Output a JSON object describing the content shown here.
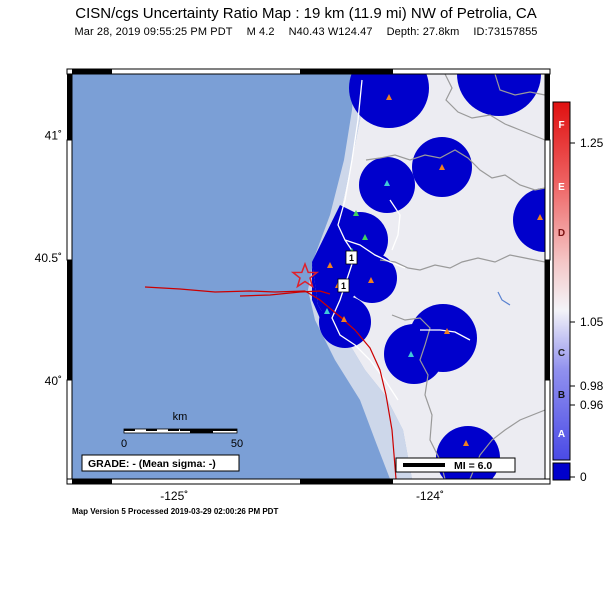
{
  "title": "CISN/cgs Uncertainty Ratio Map : 19 km (11.9 mi) NW of Petrolia, CA",
  "subtitle": {
    "datetime": "Mar 28, 2019 09:55:25 PM PDT",
    "magnitude": "M 4.2",
    "location": "N40.43 W124.47",
    "depth": "Depth: 27.8km",
    "event_id": "ID:73157855"
  },
  "map": {
    "lon_range": [
      -125.4,
      -123.55
    ],
    "lat_range": [
      39.6,
      41.25
    ],
    "lat_ticks": [
      {
        "value": 41.0,
        "label": "41˚"
      },
      {
        "value": 40.5,
        "label": "40.5˚"
      },
      {
        "value": 40.0,
        "label": "40˚"
      }
    ],
    "lon_ticks": [
      {
        "value": -125.0,
        "label": "-125˚"
      },
      {
        "value": -124.0,
        "label": "-124˚"
      }
    ],
    "epicenter": {
      "lon": -124.47,
      "lat": 40.43
    },
    "colors": {
      "ocean": "#7b9fd6",
      "land": "#ececf2",
      "coast_shelf": "#ccd6e8",
      "uncertainty": "#0000cc",
      "fault": "#cc0000",
      "star": "#e0202a"
    },
    "highway_shields": [
      "1",
      "1"
    ]
  },
  "scale_bar": {
    "unit": "km",
    "min_label": "0",
    "max_label": "50"
  },
  "grade": "GRADE: - (Mean sigma: -)",
  "legend_mi": "MI = 6.0",
  "colorbar": {
    "letters": [
      "F",
      "E",
      "D",
      "C",
      "B",
      "A"
    ],
    "ticks": [
      {
        "value": 1.25,
        "label": "1.25"
      },
      {
        "value": 1.05,
        "label": "1.05"
      },
      {
        "value": 0.98,
        "label": "0.98"
      },
      {
        "value": 0.96,
        "label": "0.96"
      },
      {
        "value": 0,
        "label": "0"
      }
    ]
  },
  "footer": "Map Version 5 Processed 2019-03-29 02:00:26 PM PDT"
}
